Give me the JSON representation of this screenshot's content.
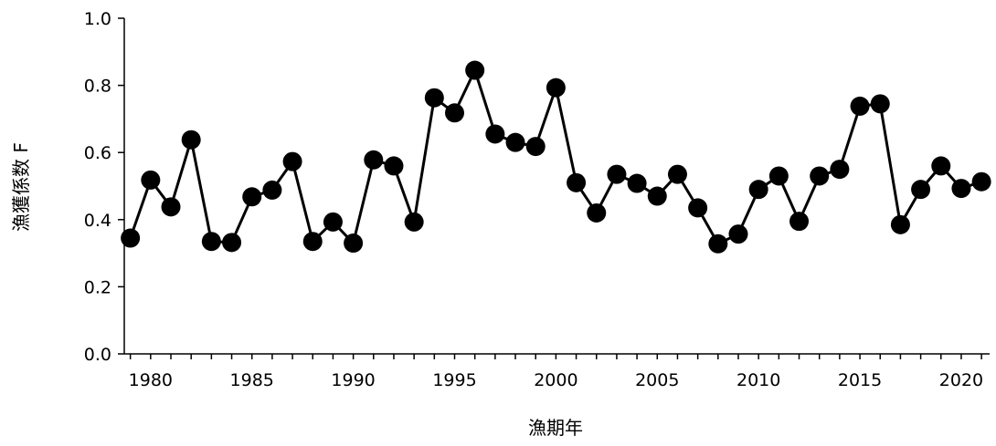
{
  "chart_data": {
    "type": "line",
    "title": "",
    "xlabel": "漁期年",
    "ylabel": "漁獲係数 F",
    "xlim": [
      1978.7,
      2021.4
    ],
    "ylim": [
      0.0,
      1.0
    ],
    "xticks": [
      1980,
      1985,
      1990,
      1995,
      2000,
      2005,
      2010,
      2015,
      2020
    ],
    "xtick_labels": [
      "1980",
      "1985",
      "1990",
      "1995",
      "2000",
      "2005",
      "2010",
      "2015",
      "2020"
    ],
    "yticks": [
      0.0,
      0.2,
      0.4,
      0.6,
      0.8,
      1.0
    ],
    "ytick_labels": [
      "0.0",
      "0.2",
      "0.4",
      "0.6",
      "0.8",
      "1.0"
    ],
    "grid": false,
    "legend": "none",
    "marker": "filled-circle",
    "color": "#000000",
    "x": [
      1979,
      1980,
      1981,
      1982,
      1983,
      1984,
      1985,
      1986,
      1987,
      1988,
      1989,
      1990,
      1991,
      1992,
      1993,
      1994,
      1995,
      1996,
      1997,
      1998,
      1999,
      2000,
      2001,
      2002,
      2003,
      2004,
      2005,
      2006,
      2007,
      2008,
      2009,
      2010,
      2011,
      2012,
      2013,
      2014,
      2015,
      2016,
      2017,
      2018,
      2019,
      2020,
      2021
    ],
    "series": [
      {
        "values": [
          0.345,
          0.518,
          0.438,
          0.638,
          0.335,
          0.332,
          0.468,
          0.488,
          0.573,
          0.335,
          0.393,
          0.33,
          0.578,
          0.56,
          0.393,
          0.763,
          0.718,
          0.845,
          0.655,
          0.63,
          0.618,
          0.793,
          0.51,
          0.42,
          0.535,
          0.508,
          0.47,
          0.535,
          0.435,
          0.328,
          0.357,
          0.49,
          0.53,
          0.395,
          0.53,
          0.55,
          0.738,
          0.745,
          0.385,
          0.49,
          0.56,
          0.493,
          0.513
        ]
      }
    ]
  }
}
